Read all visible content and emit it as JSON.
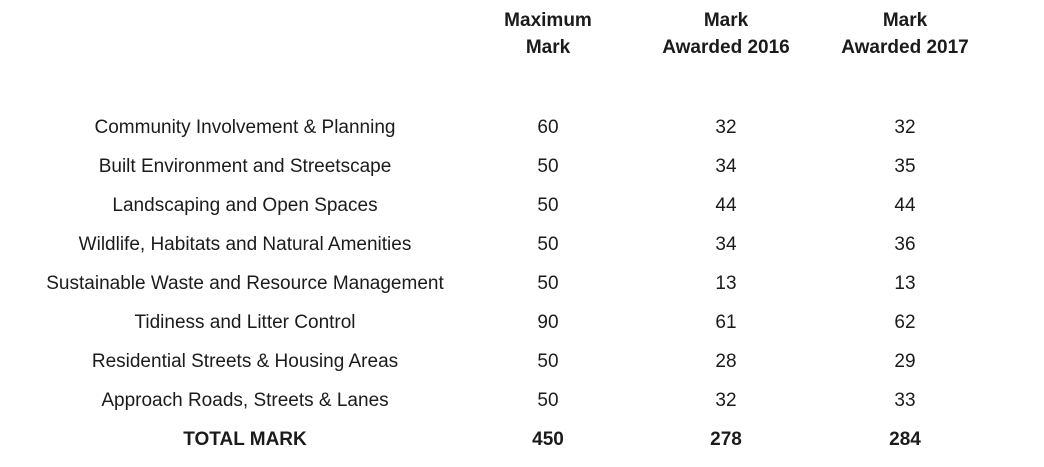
{
  "table": {
    "header": {
      "maximum": {
        "line1": "Maximum",
        "line2": "Mark"
      },
      "awarded_2016": {
        "line1": "Mark",
        "line2": "Awarded 2016"
      },
      "awarded_2017": {
        "line1": "Mark",
        "line2": "Awarded 2017"
      }
    },
    "rows": [
      {
        "label": "Community Involvement & Planning",
        "max": "60",
        "awarded_2016": "32",
        "awarded_2017": "32"
      },
      {
        "label": "Built Environment and Streetscape",
        "max": "50",
        "awarded_2016": "34",
        "awarded_2017": "35"
      },
      {
        "label": "Landscaping and Open Spaces",
        "max": "50",
        "awarded_2016": "44",
        "awarded_2017": "44"
      },
      {
        "label": "Wildlife, Habitats and Natural Amenities",
        "max": "50",
        "awarded_2016": "34",
        "awarded_2017": "36"
      },
      {
        "label": "Sustainable Waste and Resource Management",
        "max": "50",
        "awarded_2016": "13",
        "awarded_2017": "13"
      },
      {
        "label": "Tidiness and Litter Control",
        "max": "90",
        "awarded_2016": "61",
        "awarded_2017": "62"
      },
      {
        "label": "Residential Streets & Housing Areas",
        "max": "50",
        "awarded_2016": "28",
        "awarded_2017": "29"
      },
      {
        "label": "Approach Roads, Streets & Lanes",
        "max": "50",
        "awarded_2016": "32",
        "awarded_2017": "33"
      }
    ],
    "total": {
      "label": "TOTAL MARK",
      "max": "450",
      "awarded_2016": "278",
      "awarded_2017": "284"
    }
  },
  "colors": {
    "text": "#1b1b1b",
    "background": "#ffffff"
  }
}
